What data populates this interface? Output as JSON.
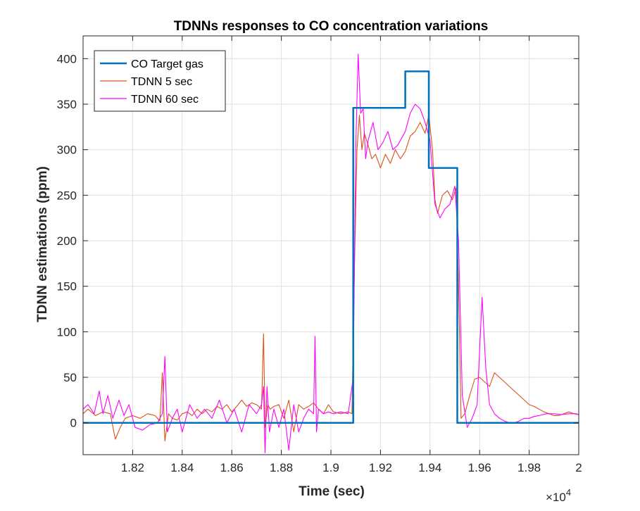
{
  "chart_data": {
    "type": "line",
    "title": "TDNNs responses to CO concentration variations",
    "xlabel": "Time (sec)",
    "ylabel": "TDNN estimations (ppm)",
    "x_exponent_base": "×10",
    "x_exponent_power": "4",
    "xlim": [
      18000,
      20000
    ],
    "ylim": [
      -35,
      425
    ],
    "x_scale_factor": 10000,
    "xticks": [
      18200,
      18400,
      18600,
      18800,
      19000,
      19200,
      19400,
      19600,
      19800,
      20000
    ],
    "xtick_labels": [
      "1.82",
      "1.84",
      "1.86",
      "1.88",
      "1.9",
      "1.92",
      "1.94",
      "1.96",
      "1.98",
      "2"
    ],
    "yticks": [
      0,
      50,
      100,
      150,
      200,
      250,
      300,
      350,
      400
    ],
    "ytick_labels": [
      "0",
      "50",
      "100",
      "150",
      "200",
      "250",
      "300",
      "350",
      "400"
    ],
    "grid": true,
    "legend_position": "top-left",
    "series": [
      {
        "name": "CO Target gas",
        "color": "#0072BD",
        "style": "step",
        "x": [
          18000,
          19090,
          19090,
          19300,
          19300,
          19395,
          19395,
          19510,
          19510,
          20000
        ],
        "y": [
          0,
          0,
          346,
          346,
          386,
          386,
          280,
          280,
          0,
          0
        ]
      },
      {
        "name": "TDNN 5 sec",
        "color": "#D95319",
        "style": "line",
        "x": [
          18000,
          18020,
          18050,
          18080,
          18110,
          18130,
          18150,
          18170,
          18200,
          18230,
          18260,
          18290,
          18310,
          18320,
          18330,
          18345,
          18360,
          18380,
          18400,
          18420,
          18440,
          18460,
          18480,
          18500,
          18520,
          18540,
          18560,
          18580,
          18600,
          18620,
          18640,
          18660,
          18680,
          18700,
          18720,
          18728,
          18735,
          18745,
          18755,
          18770,
          18790,
          18810,
          18830,
          18850,
          18870,
          18890,
          18910,
          18930,
          18950,
          18970,
          18990,
          19010,
          19040,
          19070,
          19085,
          19095,
          19105,
          19115,
          19125,
          19135,
          19150,
          19165,
          19180,
          19200,
          19220,
          19240,
          19260,
          19280,
          19300,
          19320,
          19340,
          19360,
          19380,
          19395,
          19410,
          19420,
          19430,
          19450,
          19470,
          19490,
          19505,
          19515,
          19525,
          19540,
          19560,
          19580,
          19600,
          19620,
          19640,
          19660,
          19680,
          19700,
          19720,
          19740,
          19760,
          19780,
          19800,
          19820,
          19840,
          19860,
          19880,
          19900,
          19920,
          19940,
          19960,
          19980,
          20000
        ],
        "y": [
          10,
          15,
          8,
          12,
          10,
          -18,
          -5,
          5,
          8,
          5,
          10,
          8,
          2,
          55,
          -20,
          10,
          5,
          3,
          10,
          12,
          8,
          15,
          10,
          15,
          12,
          18,
          15,
          20,
          12,
          18,
          25,
          18,
          22,
          20,
          15,
          98,
          -5,
          20,
          15,
          18,
          20,
          5,
          25,
          -10,
          20,
          15,
          18,
          22,
          15,
          10,
          20,
          12,
          10,
          12,
          10,
          170,
          300,
          338,
          300,
          318,
          305,
          290,
          295,
          280,
          295,
          285,
          300,
          290,
          298,
          315,
          320,
          330,
          318,
          338,
          300,
          245,
          230,
          250,
          255,
          245,
          258,
          150,
          5,
          10,
          30,
          48,
          50,
          45,
          40,
          55,
          50,
          45,
          40,
          35,
          30,
          25,
          20,
          18,
          15,
          12,
          10,
          8,
          8,
          10,
          12,
          10,
          9
        ]
      },
      {
        "name": "TDNN 60 sec",
        "color": "#FF00FF",
        "style": "line",
        "x": [
          18000,
          18020,
          18045,
          18065,
          18080,
          18100,
          18120,
          18145,
          18165,
          18185,
          18210,
          18240,
          18270,
          18300,
          18320,
          18330,
          18340,
          18360,
          18380,
          18400,
          18430,
          18460,
          18490,
          18520,
          18550,
          18580,
          18610,
          18640,
          18670,
          18700,
          18720,
          18728,
          18734,
          18742,
          18752,
          18770,
          18790,
          18810,
          18830,
          18850,
          18870,
          18890,
          18910,
          18930,
          18936,
          18942,
          18950,
          18970,
          18990,
          19010,
          19040,
          19070,
          19090,
          19100,
          19110,
          19120,
          19130,
          19140,
          19150,
          19170,
          19190,
          19210,
          19230,
          19250,
          19270,
          19300,
          19320,
          19340,
          19360,
          19380,
          19400,
          19420,
          19440,
          19460,
          19480,
          19500,
          19515,
          19530,
          19550,
          19570,
          19590,
          19600,
          19610,
          19625,
          19640,
          19660,
          19680,
          19700,
          19720,
          19740,
          19760,
          19780,
          19800,
          19820,
          19840,
          19870,
          19900,
          19930,
          19960,
          19990,
          20000
        ],
        "y": [
          15,
          20,
          10,
          35,
          10,
          30,
          5,
          25,
          8,
          20,
          -5,
          -8,
          -2,
          0,
          10,
          73,
          -10,
          5,
          15,
          -10,
          20,
          5,
          15,
          5,
          25,
          0,
          15,
          -10,
          20,
          10,
          20,
          40,
          -33,
          40,
          -10,
          15,
          -5,
          15,
          -30,
          20,
          -10,
          5,
          15,
          10,
          95,
          -10,
          15,
          10,
          12,
          10,
          12,
          10,
          50,
          300,
          405,
          340,
          345,
          290,
          310,
          330,
          300,
          308,
          320,
          300,
          305,
          320,
          340,
          350,
          345,
          330,
          310,
          240,
          225,
          235,
          240,
          260,
          200,
          30,
          -5,
          5,
          20,
          80,
          138,
          60,
          20,
          10,
          5,
          2,
          0,
          0,
          2,
          5,
          5,
          7,
          8,
          10,
          10,
          9,
          10,
          10,
          9
        ]
      }
    ]
  }
}
